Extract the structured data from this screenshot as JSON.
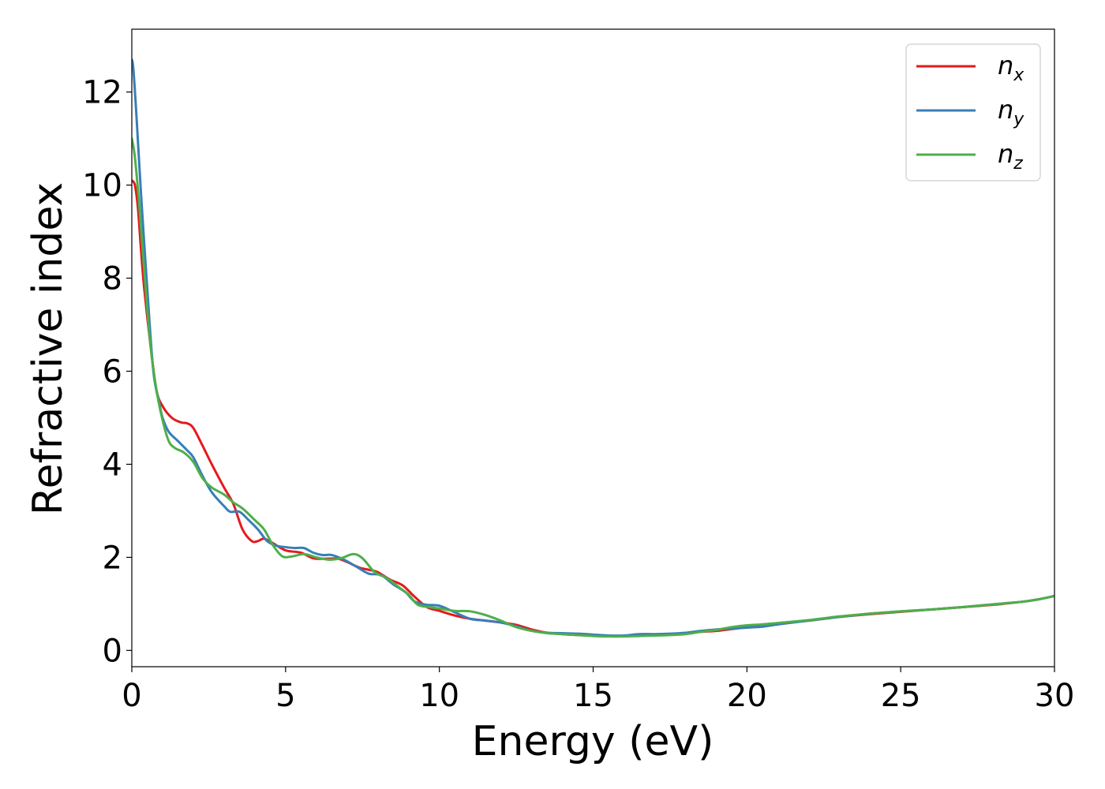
{
  "chart_data": {
    "type": "line",
    "title": "",
    "xlabel": "Energy (eV)",
    "ylabel": "Refractive index",
    "xlim": [
      0,
      30
    ],
    "ylim": [
      -0.35,
      13.35
    ],
    "xticks": [
      0,
      5,
      10,
      15,
      20,
      25,
      30
    ],
    "yticks": [
      0,
      2,
      4,
      6,
      8,
      10,
      12
    ],
    "grid": false,
    "legend_position": "top-right",
    "series": [
      {
        "name": "n_x",
        "label_main": "n",
        "label_sub": "x",
        "color": "#e41a1c",
        "points": [
          [
            0,
            10.1
          ],
          [
            0.1,
            10.0
          ],
          [
            0.2,
            9.5
          ],
          [
            0.3,
            8.6
          ],
          [
            0.4,
            7.8
          ],
          [
            0.6,
            6.6
          ],
          [
            0.8,
            5.6
          ],
          [
            1.0,
            5.25
          ],
          [
            1.3,
            5.0
          ],
          [
            1.6,
            4.9
          ],
          [
            1.8,
            4.88
          ],
          [
            2.0,
            4.78
          ],
          [
            2.3,
            4.4
          ],
          [
            2.6,
            4.0
          ],
          [
            3.0,
            3.5
          ],
          [
            3.3,
            3.15
          ],
          [
            3.6,
            2.6
          ],
          [
            3.9,
            2.35
          ],
          [
            4.1,
            2.35
          ],
          [
            4.3,
            2.4
          ],
          [
            4.6,
            2.3
          ],
          [
            5.0,
            2.15
          ],
          [
            5.5,
            2.1
          ],
          [
            5.9,
            1.98
          ],
          [
            6.3,
            1.97
          ],
          [
            6.7,
            1.97
          ],
          [
            7.0,
            1.9
          ],
          [
            7.4,
            1.78
          ],
          [
            7.8,
            1.72
          ],
          [
            8.0,
            1.68
          ],
          [
            8.4,
            1.52
          ],
          [
            8.8,
            1.4
          ],
          [
            9.2,
            1.15
          ],
          [
            9.6,
            0.93
          ],
          [
            10.0,
            0.85
          ],
          [
            10.5,
            0.75
          ],
          [
            11.0,
            0.68
          ],
          [
            11.5,
            0.64
          ],
          [
            12.0,
            0.6
          ],
          [
            12.5,
            0.55
          ],
          [
            13.0,
            0.45
          ],
          [
            13.5,
            0.38
          ],
          [
            14.0,
            0.35
          ],
          [
            14.5,
            0.33
          ],
          [
            15.0,
            0.32
          ],
          [
            15.5,
            0.31
          ],
          [
            16.0,
            0.31
          ],
          [
            16.5,
            0.33
          ],
          [
            17.0,
            0.34
          ],
          [
            17.5,
            0.35
          ],
          [
            18.0,
            0.37
          ],
          [
            18.5,
            0.4
          ],
          [
            19.0,
            0.42
          ],
          [
            19.5,
            0.46
          ],
          [
            20.0,
            0.5
          ],
          [
            20.5,
            0.53
          ],
          [
            21.0,
            0.58
          ],
          [
            22.0,
            0.64
          ],
          [
            23.0,
            0.72
          ],
          [
            24.0,
            0.78
          ],
          [
            25.0,
            0.83
          ],
          [
            26.0,
            0.88
          ],
          [
            27.0,
            0.93
          ],
          [
            28.0,
            0.98
          ],
          [
            29.0,
            1.05
          ],
          [
            29.5,
            1.1
          ],
          [
            30.0,
            1.17
          ]
        ]
      },
      {
        "name": "n_y",
        "label_main": "n",
        "label_sub": "y",
        "color": "#377eb8",
        "points": [
          [
            0,
            12.7
          ],
          [
            0.05,
            12.5
          ],
          [
            0.15,
            11.5
          ],
          [
            0.3,
            9.8
          ],
          [
            0.5,
            7.8
          ],
          [
            0.7,
            6.0
          ],
          [
            0.9,
            5.3
          ],
          [
            1.0,
            5.0
          ],
          [
            1.2,
            4.7
          ],
          [
            1.5,
            4.5
          ],
          [
            1.8,
            4.3
          ],
          [
            2.0,
            4.15
          ],
          [
            2.3,
            3.75
          ],
          [
            2.6,
            3.4
          ],
          [
            3.0,
            3.1
          ],
          [
            3.2,
            2.98
          ],
          [
            3.5,
            2.98
          ],
          [
            3.8,
            2.8
          ],
          [
            4.1,
            2.6
          ],
          [
            4.4,
            2.35
          ],
          [
            4.7,
            2.25
          ],
          [
            5.0,
            2.22
          ],
          [
            5.3,
            2.2
          ],
          [
            5.6,
            2.2
          ],
          [
            5.9,
            2.1
          ],
          [
            6.2,
            2.05
          ],
          [
            6.5,
            2.05
          ],
          [
            6.9,
            1.95
          ],
          [
            7.3,
            1.8
          ],
          [
            7.7,
            1.65
          ],
          [
            8.1,
            1.62
          ],
          [
            8.5,
            1.42
          ],
          [
            8.9,
            1.25
          ],
          [
            9.2,
            1.05
          ],
          [
            9.6,
            0.98
          ],
          [
            10.0,
            0.96
          ],
          [
            10.5,
            0.82
          ],
          [
            11.0,
            0.68
          ],
          [
            11.5,
            0.64
          ],
          [
            12.0,
            0.6
          ],
          [
            12.5,
            0.52
          ],
          [
            13.0,
            0.42
          ],
          [
            13.5,
            0.38
          ],
          [
            14.0,
            0.37
          ],
          [
            14.5,
            0.36
          ],
          [
            15.0,
            0.34
          ],
          [
            15.5,
            0.32
          ],
          [
            16.0,
            0.32
          ],
          [
            16.5,
            0.35
          ],
          [
            17.0,
            0.35
          ],
          [
            17.5,
            0.36
          ],
          [
            18.0,
            0.38
          ],
          [
            18.5,
            0.42
          ],
          [
            19.0,
            0.45
          ],
          [
            19.5,
            0.47
          ],
          [
            20.0,
            0.49
          ],
          [
            20.5,
            0.51
          ],
          [
            21.0,
            0.56
          ],
          [
            22.0,
            0.64
          ],
          [
            23.0,
            0.72
          ],
          [
            24.0,
            0.79
          ],
          [
            25.0,
            0.84
          ],
          [
            26.0,
            0.88
          ],
          [
            27.0,
            0.93
          ],
          [
            28.0,
            0.99
          ],
          [
            29.0,
            1.05
          ],
          [
            29.5,
            1.1
          ],
          [
            30.0,
            1.17
          ]
        ]
      },
      {
        "name": "n_z",
        "label_main": "n",
        "label_sub": "z",
        "color": "#4daf4a",
        "points": [
          [
            0,
            11.0
          ],
          [
            0.1,
            10.6
          ],
          [
            0.25,
            9.5
          ],
          [
            0.4,
            8.2
          ],
          [
            0.6,
            6.6
          ],
          [
            0.8,
            5.6
          ],
          [
            1.0,
            4.95
          ],
          [
            1.2,
            4.5
          ],
          [
            1.4,
            4.35
          ],
          [
            1.7,
            4.25
          ],
          [
            2.0,
            4.05
          ],
          [
            2.3,
            3.7
          ],
          [
            2.6,
            3.5
          ],
          [
            3.0,
            3.35
          ],
          [
            3.3,
            3.18
          ],
          [
            3.6,
            3.05
          ],
          [
            4.0,
            2.8
          ],
          [
            4.3,
            2.6
          ],
          [
            4.6,
            2.25
          ],
          [
            4.9,
            2.02
          ],
          [
            5.2,
            2.02
          ],
          [
            5.6,
            2.07
          ],
          [
            6.0,
            2.0
          ],
          [
            6.4,
            1.95
          ],
          [
            6.8,
            1.98
          ],
          [
            7.2,
            2.07
          ],
          [
            7.5,
            1.98
          ],
          [
            7.9,
            1.68
          ],
          [
            8.3,
            1.55
          ],
          [
            8.7,
            1.35
          ],
          [
            9.0,
            1.2
          ],
          [
            9.3,
            0.98
          ],
          [
            9.7,
            0.93
          ],
          [
            10.0,
            0.9
          ],
          [
            10.5,
            0.85
          ],
          [
            11.0,
            0.84
          ],
          [
            11.5,
            0.76
          ],
          [
            12.0,
            0.64
          ],
          [
            12.5,
            0.5
          ],
          [
            13.0,
            0.42
          ],
          [
            13.5,
            0.37
          ],
          [
            14.0,
            0.35
          ],
          [
            14.5,
            0.33
          ],
          [
            15.0,
            0.31
          ],
          [
            15.5,
            0.3
          ],
          [
            16.0,
            0.3
          ],
          [
            16.5,
            0.31
          ],
          [
            17.0,
            0.32
          ],
          [
            17.5,
            0.33
          ],
          [
            18.0,
            0.35
          ],
          [
            18.5,
            0.4
          ],
          [
            19.0,
            0.44
          ],
          [
            19.5,
            0.5
          ],
          [
            20.0,
            0.54
          ],
          [
            20.5,
            0.56
          ],
          [
            21.0,
            0.59
          ],
          [
            22.0,
            0.65
          ],
          [
            23.0,
            0.73
          ],
          [
            24.0,
            0.79
          ],
          [
            25.0,
            0.84
          ],
          [
            26.0,
            0.88
          ],
          [
            27.0,
            0.93
          ],
          [
            28.0,
            0.99
          ],
          [
            29.0,
            1.05
          ],
          [
            29.5,
            1.1
          ],
          [
            30.0,
            1.17
          ]
        ]
      }
    ]
  }
}
